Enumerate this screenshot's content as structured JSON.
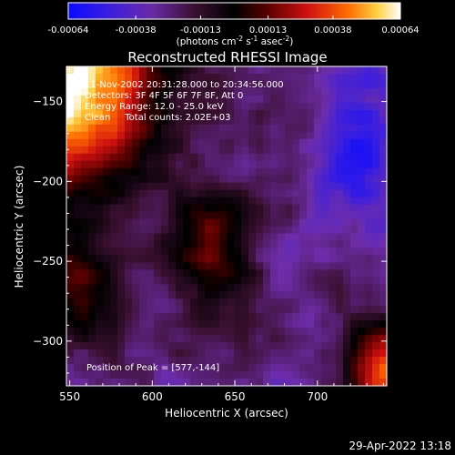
{
  "colorbar": {
    "ticks": [
      {
        "label": "-0.00064",
        "value": -0.00064
      },
      {
        "label": "-0.00038",
        "value": -0.00038
      },
      {
        "label": "-0.00013",
        "value": -0.00013
      },
      {
        "label": "0.00013",
        "value": 0.00013
      },
      {
        "label": "0.00038",
        "value": 0.00038
      },
      {
        "label": "0.00064",
        "value": 0.00064
      }
    ],
    "range": [
      -0.00064,
      0.00064
    ],
    "units_prefix": "(photons cm",
    "units_exp1": "-2",
    "units_mid": " s",
    "units_exp2": "-1",
    "units_mid2": " asec",
    "units_exp3": "-2",
    "units_suffix": ")"
  },
  "plot": {
    "title": "Reconstructed RHESSI Image",
    "xlabel": "Heliocentric X (arcsec)",
    "ylabel": "Heliocentric Y (arcsec)",
    "xlim": [
      548,
      742
    ],
    "ylim": [
      -328,
      -128
    ],
    "xticks": [
      {
        "label": "550",
        "value": 550
      },
      {
        "label": "600",
        "value": 600
      },
      {
        "label": "650",
        "value": 650
      },
      {
        "label": "700",
        "value": 700
      }
    ],
    "yticks": [
      {
        "label": "−150",
        "value": -150
      },
      {
        "label": "−200",
        "value": -200
      },
      {
        "label": "−250",
        "value": -250
      },
      {
        "label": "−300",
        "value": -300
      }
    ],
    "info_lines": [
      "11-Nov-2002 20:31:28.000 to 20:34:56.000",
      "Detectors: 3F 4F 5F 6F 7F 8F, Att 0",
      "Energy Range: 12.0 - 25.0 keV",
      "Clean     Total counts: 2.02E+03"
    ],
    "peak_text": "Position of Peak = [577,-144]"
  },
  "footer": {
    "date": "29-Apr-2022 13:18"
  }
}
